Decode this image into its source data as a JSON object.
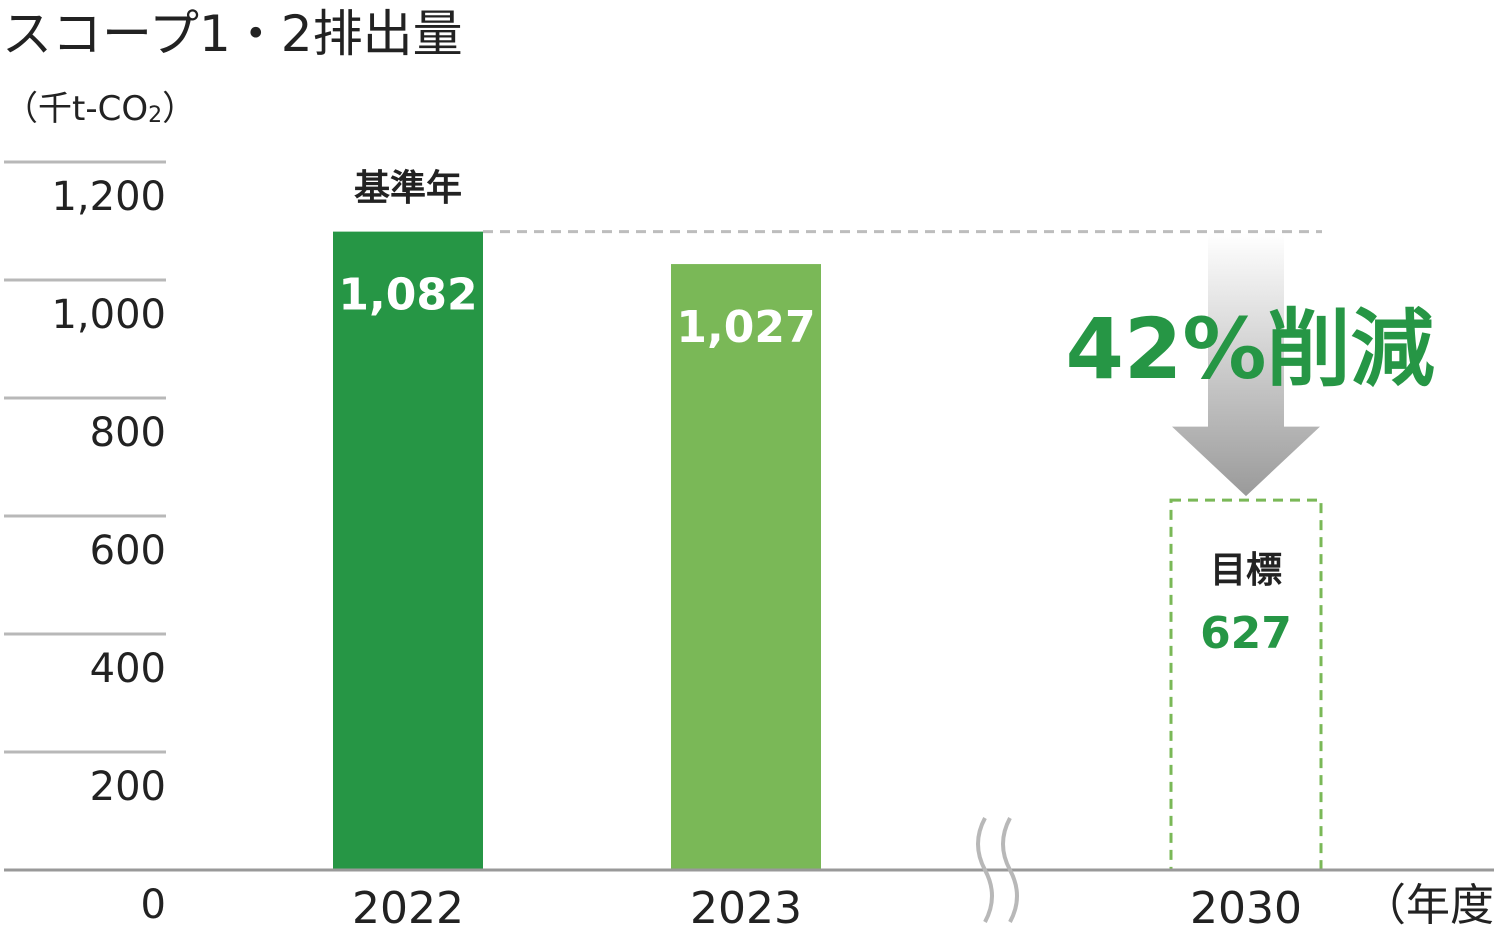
{
  "title": "スコープ1・2排出量",
  "unit_main": "（千t-CO",
  "unit_sub": "2",
  "unit_close": "）",
  "x_unit": "（年度）",
  "baseline_label": "基準年",
  "target_label": "目標",
  "reduction_label": "42%削減",
  "colors": {
    "bar_2022": "#269645",
    "bar_2023": "#7ab857",
    "target_outline": "#7ab857",
    "target_text": "#269645",
    "reduction_text": "#269645",
    "gridline": "#b8b8b8",
    "axis": "#999999",
    "dashed_ref": "#bdbdbd"
  },
  "chart_data": {
    "type": "bar",
    "title": "スコープ1・2排出量",
    "ylabel": "（千t-CO2）",
    "xlabel": "（年度）",
    "ylim": [
      0,
      1200
    ],
    "yticks": [
      0,
      200,
      400,
      600,
      800,
      1000,
      1200
    ],
    "ytick_labels": [
      "0",
      "200",
      "400",
      "600",
      "800",
      "1,000",
      "1,200"
    ],
    "categories": [
      "2022",
      "2023",
      "2030"
    ],
    "values": [
      1082,
      1027,
      627
    ],
    "value_labels": [
      "1,082",
      "1,027",
      "627"
    ],
    "bar_styles": [
      "solid",
      "solid",
      "dashed-outline"
    ],
    "annotations": [
      "基準年",
      "目標",
      "42%削減"
    ],
    "grid": true,
    "axis_break_between": [
      "2023",
      "2030"
    ]
  }
}
